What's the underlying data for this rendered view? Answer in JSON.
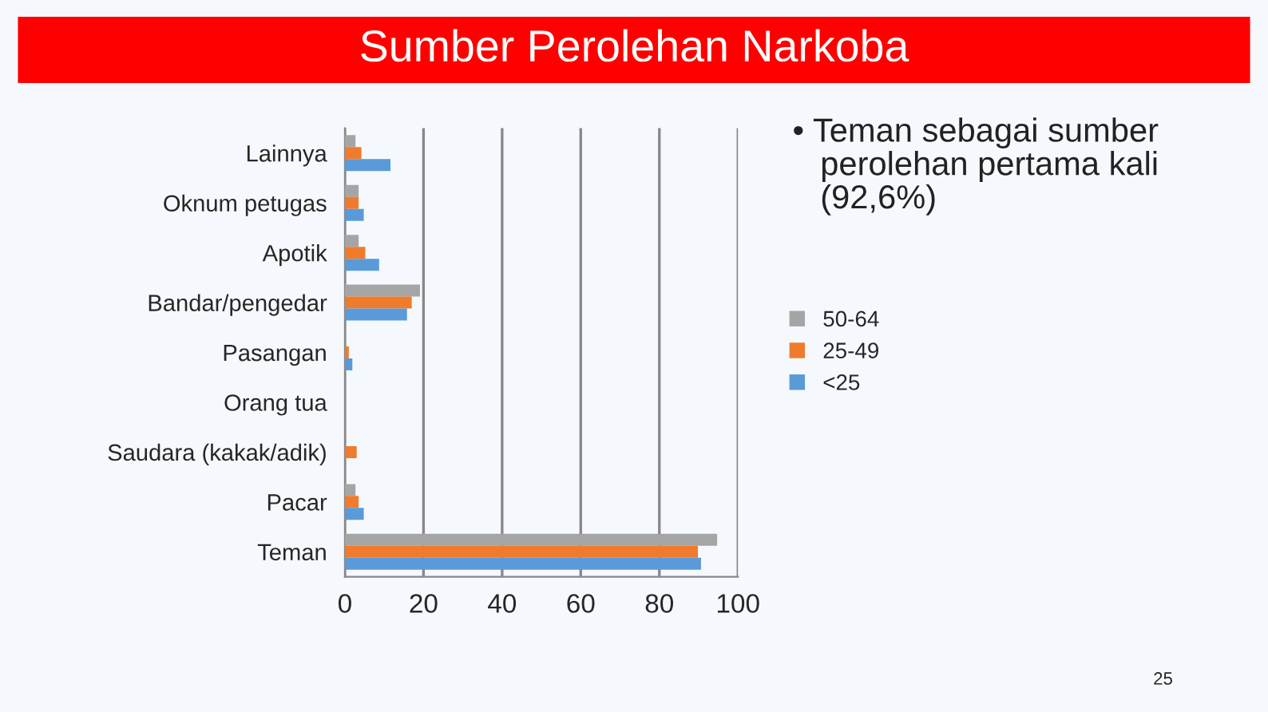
{
  "chart_data": {
    "type": "bar",
    "orientation": "horizontal",
    "title": "Sumber Perolehan Narkoba",
    "categories": [
      "Lainnya",
      "Oknum petugas",
      "Apotik",
      "Bandar/pengedar",
      "Pasangan",
      "Orang tua",
      "Saudara (kakak/adik)",
      "Pacar",
      "Teman"
    ],
    "series": [
      {
        "name": "50-64",
        "color": "#a5a5a5",
        "values": [
          2.7,
          3.5,
          3.5,
          19.1,
          0,
          0,
          0,
          2.7,
          94.7
        ]
      },
      {
        "name": "25-49",
        "color": "#f07b2c",
        "values": [
          4.2,
          3.5,
          5.2,
          17.0,
          1.0,
          0,
          3.0,
          3.5,
          89.8
        ]
      },
      {
        "name": "<25",
        "color": "#5a9ad8",
        "values": [
          11.6,
          4.8,
          8.7,
          15.8,
          1.9,
          0,
          0,
          4.8,
          90.6
        ]
      }
    ],
    "xlim": [
      0,
      100
    ],
    "xticks": [
      0,
      20,
      40,
      60,
      80,
      100
    ],
    "grid": "x",
    "legend": "right",
    "annotations": [
      "• Teman sebagai sumber\n   perolehan pertama kali\n   (92,6%)",
      "25"
    ]
  }
}
